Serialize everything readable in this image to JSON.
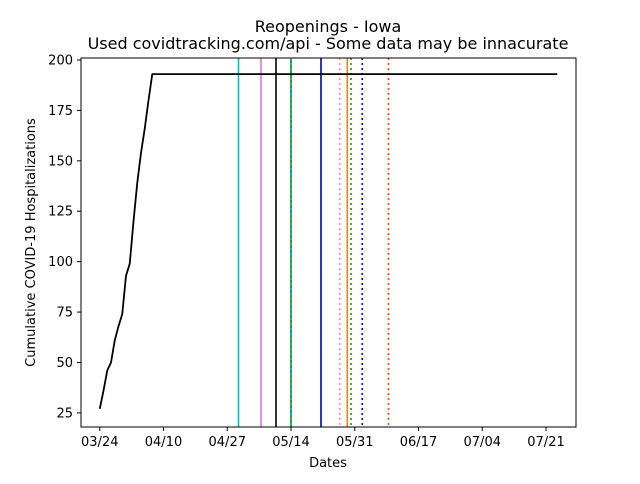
{
  "chart_data": {
    "type": "line",
    "title": "Reopenings - Iowa",
    "subtitle": "Used covidtracking.com/api - Some data may be innacurate",
    "xlabel": "Dates",
    "ylabel": "Cumulative COVID-19 Hospitalizations",
    "xlim": [
      "2020-03-19",
      "2020-07-29"
    ],
    "ylim": [
      18,
      201
    ],
    "x_ticks": [
      {
        "date": "2020-03-24",
        "label": "03/24"
      },
      {
        "date": "2020-04-10",
        "label": "04/10"
      },
      {
        "date": "2020-04-27",
        "label": "04/27"
      },
      {
        "date": "2020-05-14",
        "label": "05/14"
      },
      {
        "date": "2020-05-31",
        "label": "05/31"
      },
      {
        "date": "2020-06-17",
        "label": "06/17"
      },
      {
        "date": "2020-07-04",
        "label": "07/04"
      },
      {
        "date": "2020-07-21",
        "label": "07/21"
      }
    ],
    "y_ticks": [
      25,
      50,
      75,
      100,
      125,
      150,
      175,
      200
    ],
    "grid": false,
    "series": [
      {
        "color": "#000000",
        "x": [
          "2020-03-24",
          "2020-03-25",
          "2020-03-26",
          "2020-03-27",
          "2020-03-28",
          "2020-03-29",
          "2020-03-30",
          "2020-03-31",
          "2020-04-01",
          "2020-04-02",
          "2020-04-03",
          "2020-04-04",
          "2020-04-05",
          "2020-04-06",
          "2020-04-07",
          "2020-07-24"
        ],
        "y": [
          27,
          36,
          46,
          50,
          61,
          68,
          74,
          93,
          99,
          120,
          139,
          154,
          166,
          180,
          193,
          193
        ]
      }
    ],
    "vlines": [
      {
        "date": "2020-04-30",
        "color": "#00bfbf",
        "style": "solid"
      },
      {
        "date": "2020-05-06",
        "color": "#dd77dd",
        "style": "solid"
      },
      {
        "date": "2020-05-10",
        "color": "#000000",
        "style": "solid"
      },
      {
        "date": "2020-05-14",
        "color": "#008000",
        "style": "solid"
      },
      {
        "date": "2020-05-14",
        "color": "#00bfbf",
        "style": "dotted"
      },
      {
        "date": "2020-05-22",
        "color": "#0000aa",
        "style": "solid"
      },
      {
        "date": "2020-05-27",
        "color": "#ff88cc",
        "style": "dotted"
      },
      {
        "date": "2020-05-29",
        "color": "#ff7f0e",
        "style": "solid"
      },
      {
        "date": "2020-05-30",
        "color": "#228b22",
        "style": "dotted"
      },
      {
        "date": "2020-06-02",
        "color": "#0000ff",
        "style": "dotted"
      },
      {
        "date": "2020-06-09",
        "color": "#ff4500",
        "style": "dotted"
      }
    ]
  }
}
